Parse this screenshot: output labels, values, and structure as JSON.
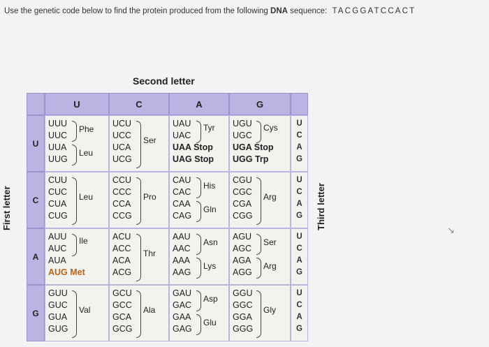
{
  "question": {
    "text": "Use the genetic code below to find the protein produced from the following",
    "dna_word": "DNA",
    "word_sequence": "sequence:",
    "sequence": "TACGGATCCACT"
  },
  "labels": {
    "second": "Second letter",
    "first": "First letter",
    "third": "Third letter"
  },
  "col_headers": [
    "U",
    "C",
    "A",
    "G"
  ],
  "row_headers": [
    "U",
    "C",
    "A",
    "G"
  ],
  "third_bases": [
    "U",
    "C",
    "A",
    "G"
  ],
  "colors": {
    "header_bg": "#b9b4e2",
    "cell_bg": "#f2f2ee",
    "met": "#b5651d"
  },
  "rows": [
    {
      "cols": [
        {
          "lines": [
            "UUU",
            "UUC",
            "UUA",
            "UUG"
          ],
          "aa": [
            "Phe",
            "Leu"
          ]
        },
        {
          "lines": [
            "UCU",
            "UCC",
            "UCA",
            "UCG"
          ],
          "aa": [
            "Ser"
          ]
        },
        {
          "lines": [
            "UAU",
            "UAC",
            "UAA Stop",
            "UAG Stop"
          ],
          "aa": [
            "Tyr"
          ]
        },
        {
          "lines": [
            "UGU",
            "UGC",
            "UGA  Stop",
            "UGG  Trp"
          ],
          "aa": [
            "Cys"
          ]
        }
      ]
    },
    {
      "cols": [
        {
          "lines": [
            "CUU",
            "CUC",
            "CUA",
            "CUG"
          ],
          "aa": [
            "Leu"
          ]
        },
        {
          "lines": [
            "CCU",
            "CCC",
            "CCA",
            "CCG"
          ],
          "aa": [
            "Pro"
          ]
        },
        {
          "lines": [
            "CAU",
            "CAC",
            "CAA",
            "CAG"
          ],
          "aa": [
            "His",
            "Gln"
          ]
        },
        {
          "lines": [
            "CGU",
            "CGC",
            "CGA",
            "CGG"
          ],
          "aa": [
            "Arg"
          ]
        }
      ]
    },
    {
      "cols": [
        {
          "lines": [
            "AUU",
            "AUC",
            "AUA",
            "AUG  Met"
          ],
          "aa": [
            "Ile"
          ]
        },
        {
          "lines": [
            "ACU",
            "ACC",
            "ACA",
            "ACG"
          ],
          "aa": [
            "Thr"
          ]
        },
        {
          "lines": [
            "AAU",
            "AAC",
            "AAA",
            "AAG"
          ],
          "aa": [
            "Asn",
            "Lys"
          ]
        },
        {
          "lines": [
            "AGU",
            "AGC",
            "AGA",
            "AGG"
          ],
          "aa": [
            "Ser",
            "Arg"
          ]
        }
      ]
    },
    {
      "cols": [
        {
          "lines": [
            "GUU",
            "GUC",
            "GUA",
            "GUG"
          ],
          "aa": [
            "Val"
          ]
        },
        {
          "lines": [
            "GCU",
            "GCC",
            "GCA",
            "GCG"
          ],
          "aa": [
            "Ala"
          ]
        },
        {
          "lines": [
            "GAU",
            "GAC",
            "GAA",
            "GAG"
          ],
          "aa": [
            "Asp",
            "Glu"
          ]
        },
        {
          "lines": [
            "GGU",
            "GGC",
            "GGA",
            "GGG"
          ],
          "aa": [
            "Gly"
          ]
        }
      ]
    }
  ]
}
